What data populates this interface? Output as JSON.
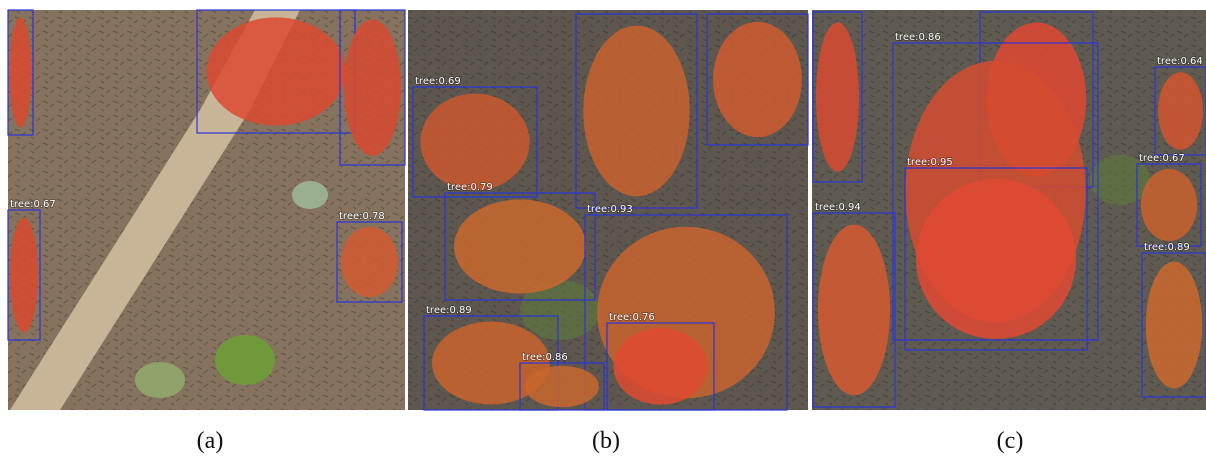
{
  "panels": [
    {
      "caption": "(a)",
      "labels": [
        "tree:0.67",
        "tree:0.78"
      ]
    },
    {
      "caption": "(b)",
      "labels": [
        "tree:0.69",
        "tree:0.79",
        "tree:0.93",
        "tree:0.89",
        "tree:0.86",
        "tree:0.76"
      ]
    },
    {
      "caption": "(c)",
      "labels": [
        "tree:0.86",
        "tree:0.64",
        "tree:0.95",
        "tree:0.67",
        "tree:0.94",
        "tree:0.89"
      ]
    }
  ]
}
